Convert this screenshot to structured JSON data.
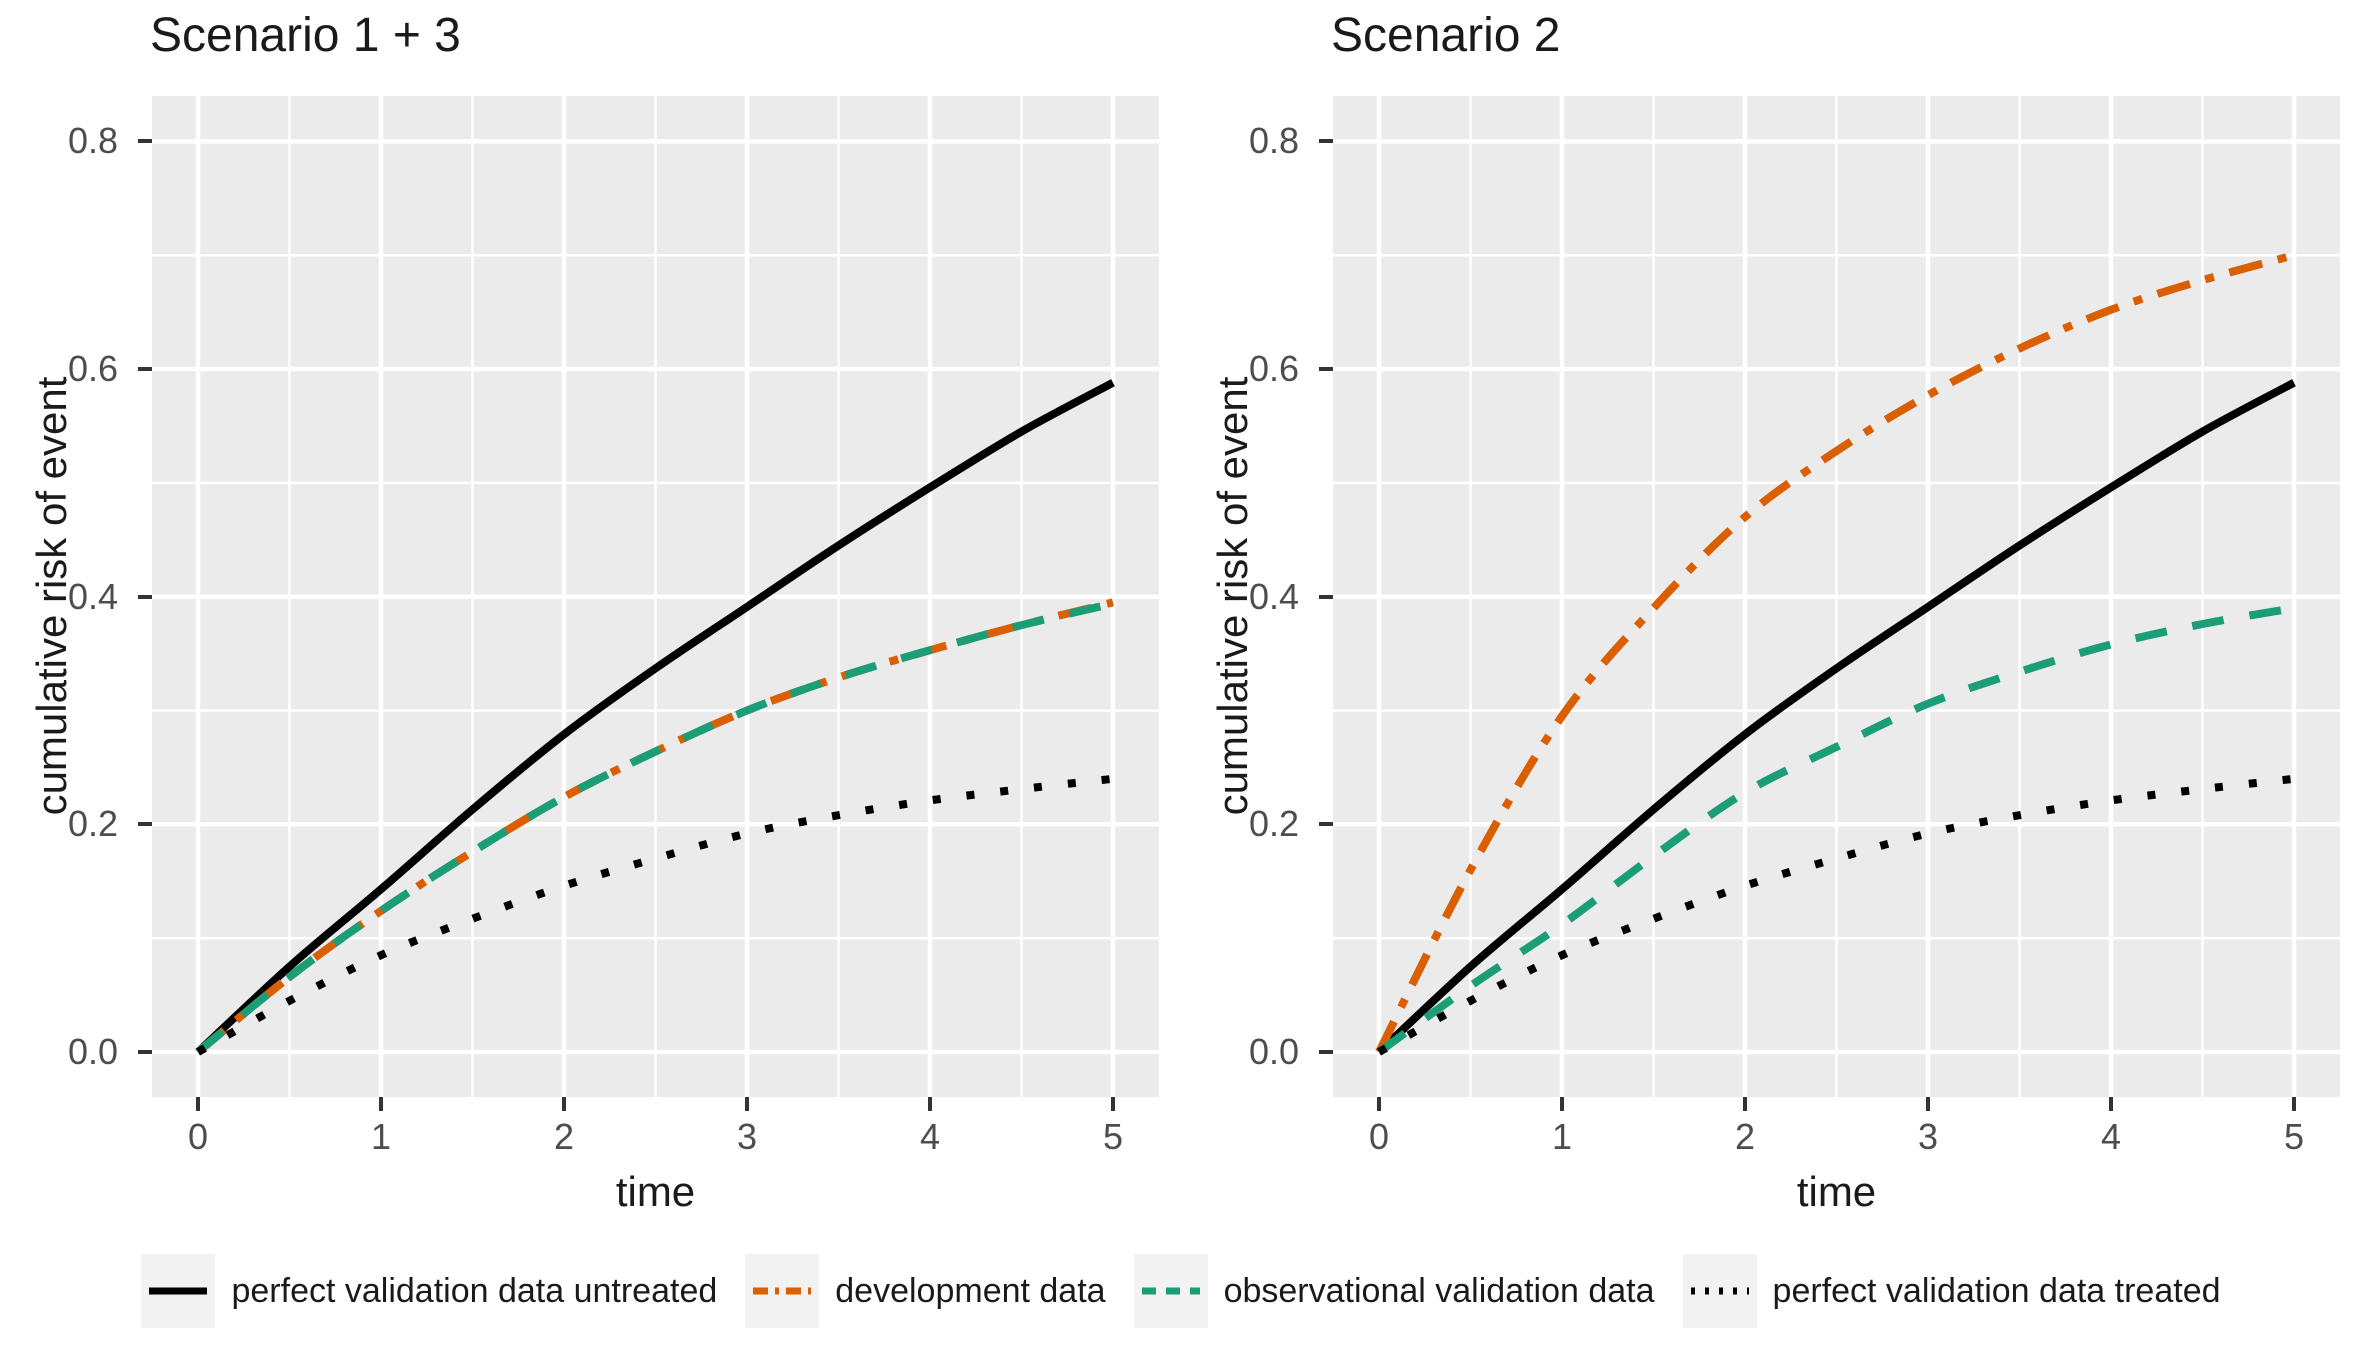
{
  "figure": {
    "background": "#FFFFFF",
    "panel_background": "#EBEBEB",
    "gridline_color": "#FFFFFF",
    "tick_mark_color": "#333333",
    "tick_label_color": "#4D4D4D",
    "text_color": "#1A1A1A",
    "legend_key_background": "#F2F2F2"
  },
  "panels": [
    {
      "title": "Scenario 1 + 3",
      "x_label": "time",
      "y_label": "cumulative risk of event",
      "x_ticks": [
        "0",
        "1",
        "2",
        "3",
        "4",
        "5"
      ],
      "y_ticks": [
        "0.0",
        "0.2",
        "0.4",
        "0.6",
        "0.8"
      ]
    },
    {
      "title": "Scenario 2",
      "x_label": "time",
      "y_label": "cumulative risk of event",
      "x_ticks": [
        "0",
        "1",
        "2",
        "3",
        "4",
        "5"
      ],
      "y_ticks": [
        "0.0",
        "0.2",
        "0.4",
        "0.6",
        "0.8"
      ]
    }
  ],
  "legend": {
    "items": [
      {
        "label": "perfect validation data untreated",
        "color": "#000000",
        "linetype": "solid"
      },
      {
        "label": "development data",
        "color": "#D95F02",
        "linetype": "dashdot"
      },
      {
        "label": "observational validation data",
        "color": "#1B9E77",
        "linetype": "dashed"
      },
      {
        "label": "perfect validation data treated",
        "color": "#000000",
        "linetype": "dotted"
      }
    ]
  },
  "chart_data": [
    {
      "type": "line",
      "title": "Scenario 1 + 3",
      "xlabel": "time",
      "ylabel": "cumulative risk of event",
      "xlim": [
        0,
        5
      ],
      "ylim": [
        0,
        0.8
      ],
      "grid": true,
      "legend_position": "bottom",
      "x": [
        0,
        0.5,
        1,
        1.5,
        2,
        2.5,
        3,
        3.5,
        4,
        4.5,
        5
      ],
      "series": [
        {
          "name": "perfect validation data untreated",
          "color": "#000000",
          "linetype": "solid",
          "values": [
            0,
            0.075,
            0.143,
            0.213,
            0.279,
            0.337,
            0.391,
            0.445,
            0.496,
            0.545,
            0.588
          ]
        },
        {
          "name": "development data",
          "color": "#D95F02",
          "linetype": "dashdot",
          "values": [
            0,
            0.066,
            0.124,
            0.176,
            0.224,
            0.264,
            0.3,
            0.329,
            0.353,
            0.375,
            0.395
          ]
        },
        {
          "name": "observational validation data",
          "color": "#1B9E77",
          "linetype": "dashed",
          "values": [
            0,
            0.066,
            0.124,
            0.176,
            0.224,
            0.264,
            0.3,
            0.329,
            0.353,
            0.375,
            0.394
          ]
        },
        {
          "name": "perfect validation data treated",
          "color": "#000000",
          "linetype": "dotted",
          "values": [
            0,
            0.045,
            0.085,
            0.117,
            0.146,
            0.17,
            0.192,
            0.208,
            0.221,
            0.231,
            0.24
          ]
        }
      ]
    },
    {
      "type": "line",
      "title": "Scenario 2",
      "xlabel": "time",
      "ylabel": "cumulative risk of event",
      "xlim": [
        0,
        5
      ],
      "ylim": [
        0,
        0.8
      ],
      "grid": true,
      "legend_position": "bottom",
      "x": [
        0,
        0.5,
        1,
        1.5,
        2,
        2.5,
        3,
        3.5,
        4,
        4.5,
        5
      ],
      "series": [
        {
          "name": "perfect validation data untreated",
          "color": "#000000",
          "linetype": "solid",
          "values": [
            0,
            0.075,
            0.143,
            0.213,
            0.279,
            0.337,
            0.391,
            0.445,
            0.496,
            0.545,
            0.588
          ]
        },
        {
          "name": "development data",
          "color": "#D95F02",
          "linetype": "dashdot",
          "values": [
            0,
            0.16,
            0.295,
            0.39,
            0.47,
            0.528,
            0.577,
            0.618,
            0.652,
            0.678,
            0.7
          ]
        },
        {
          "name": "observational validation data",
          "color": "#1B9E77",
          "linetype": "dashed",
          "values": [
            0,
            0.058,
            0.112,
            0.172,
            0.228,
            0.268,
            0.306,
            0.334,
            0.358,
            0.376,
            0.39
          ]
        },
        {
          "name": "perfect validation data treated",
          "color": "#000000",
          "linetype": "dotted",
          "values": [
            0,
            0.045,
            0.085,
            0.117,
            0.146,
            0.17,
            0.192,
            0.208,
            0.221,
            0.231,
            0.24
          ]
        }
      ]
    }
  ]
}
